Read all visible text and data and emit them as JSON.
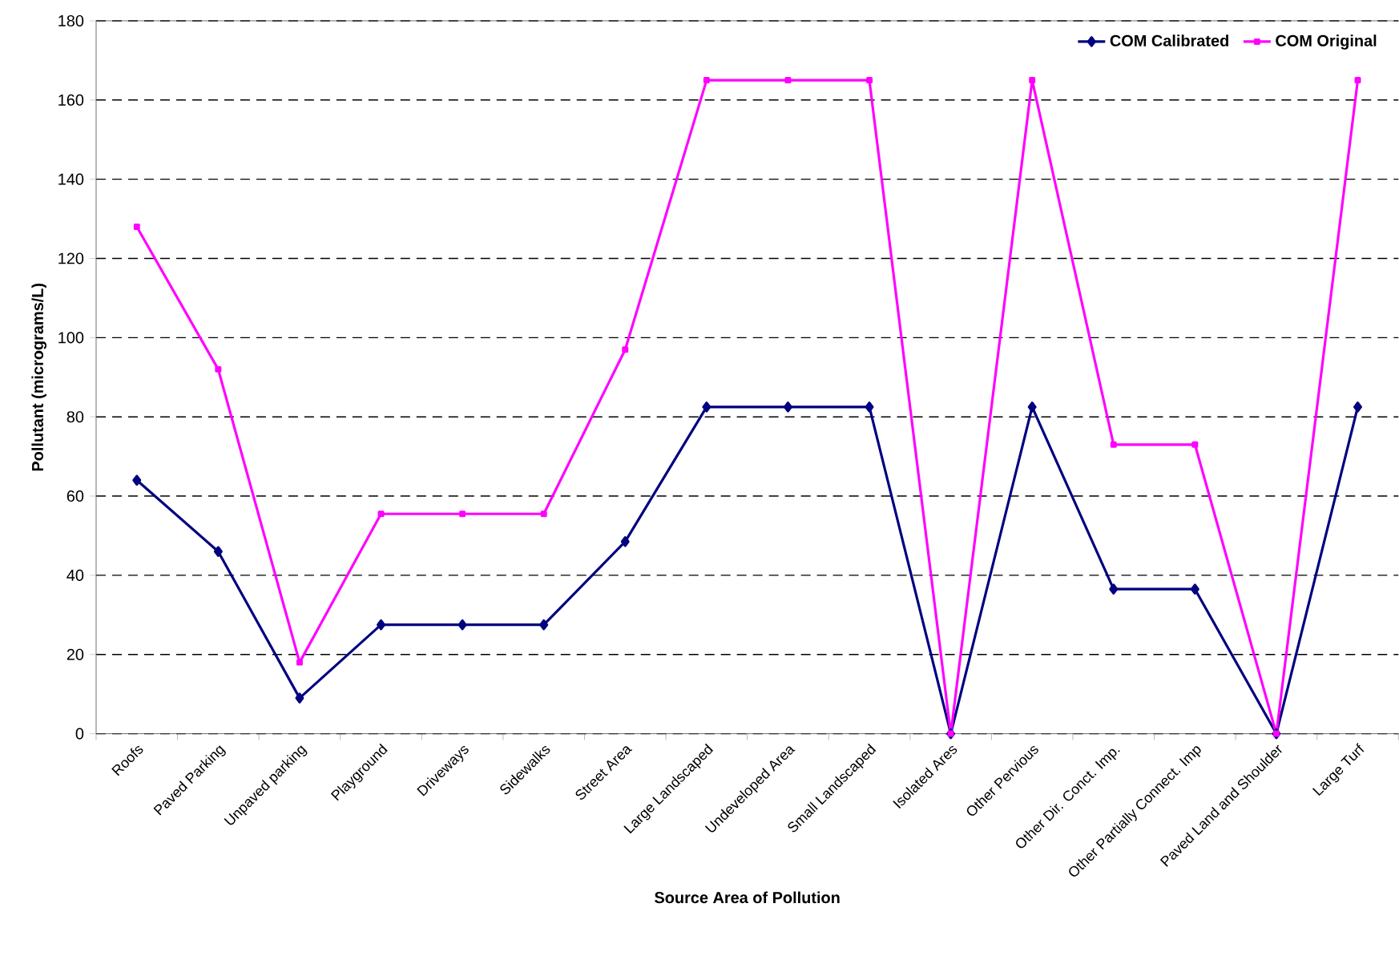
{
  "chart_data": {
    "type": "line",
    "xlabel": "Source Area of Pollution",
    "ylabel": "Pollutant (micrograms/L)",
    "categories": [
      "Roofs",
      "Paved Parking",
      "Unpaved parking",
      "Playground",
      "Driveways",
      "Sidewalks",
      "Street Area",
      "Large Landscaped",
      "Undeveloped Area",
      "Small Landscaped",
      "Isolated Ares",
      "Other Pervious",
      "Other Dir. Conct. Imp.",
      "Other Partially Connect. Imp",
      "Paved Land and Shoulder",
      "Large Turf"
    ],
    "series": [
      {
        "name": "COM Calibrated",
        "color": "#000080",
        "marker": "diamond",
        "values": [
          64,
          46,
          9,
          27.5,
          27.5,
          27.5,
          48.5,
          82.5,
          82.5,
          82.5,
          0,
          82.5,
          36.5,
          36.5,
          0,
          82.5
        ]
      },
      {
        "name": "COM Original",
        "color": "#ff00ff",
        "marker": "square",
        "values": [
          128,
          92,
          18,
          55.5,
          55.5,
          55.5,
          97,
          165,
          165,
          165,
          0,
          165,
          73,
          73,
          0,
          165
        ]
      }
    ],
    "ylim": [
      0,
      180
    ],
    "yticks": [
      0,
      20,
      40,
      60,
      80,
      100,
      120,
      140,
      160,
      180
    ],
    "grid": "y",
    "legend": "top right",
    "line_style": "solid"
  }
}
